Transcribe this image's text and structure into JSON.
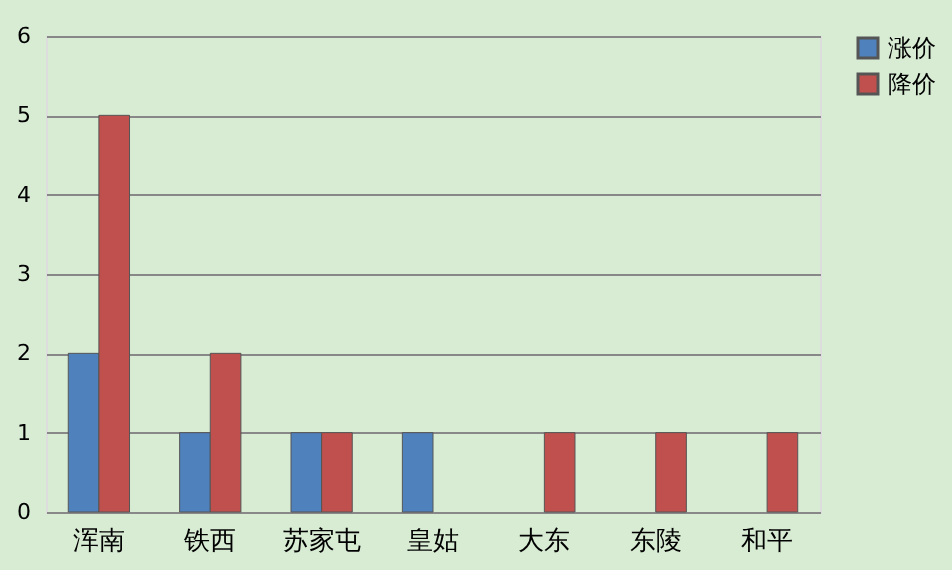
{
  "chart_data": {
    "type": "bar",
    "categories": [
      "浑南",
      "铁西",
      "苏家屯",
      "皇姑",
      "大东",
      "东陵",
      "和平"
    ],
    "series": [
      {
        "name": "涨价",
        "color": "#4f81bd",
        "values": [
          2,
          1,
          1,
          1,
          null,
          null,
          null
        ]
      },
      {
        "name": "降价",
        "color": "#c0504d",
        "values": [
          5,
          2,
          1,
          null,
          1,
          1,
          1
        ]
      }
    ],
    "ylim": [
      0,
      6
    ],
    "yticks": [
      0,
      1,
      2,
      3,
      4,
      5,
      6
    ],
    "grid": "y",
    "legend": "right"
  }
}
